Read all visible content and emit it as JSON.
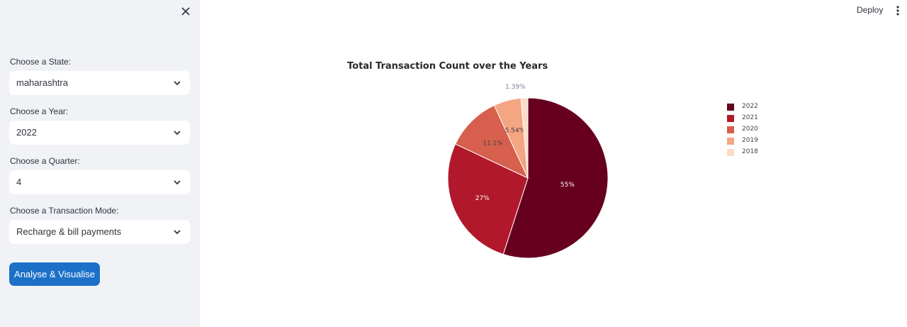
{
  "sidebar": {
    "fields": [
      {
        "label": "Choose a State:",
        "value": "maharashtra"
      },
      {
        "label": "Choose a Year:",
        "value": "2022"
      },
      {
        "label": "Choose a Quarter:",
        "value": "4"
      },
      {
        "label": "Choose a Transaction Mode:",
        "value": "Recharge & bill payments"
      }
    ],
    "button_label": "Analyse & Visualise"
  },
  "header": {
    "deploy_label": "Deploy"
  },
  "colors": {
    "sidebar_bg": "#f0f2f6",
    "primary_button": "#1c70c8"
  },
  "chart_data": {
    "type": "pie",
    "title": "Total Transaction Count over the Years",
    "labels": [
      "2022",
      "2021",
      "2020",
      "2019",
      "2018"
    ],
    "values": [
      55,
      27,
      11.1,
      5.54,
      1.39
    ],
    "text": [
      "55%",
      "27%",
      "11.1%",
      "5.54%",
      "1.39%"
    ],
    "colors": [
      "#67001f",
      "#b2182b",
      "#d6604d",
      "#f4a582",
      "#fddbc7"
    ],
    "legend_position": "right"
  }
}
